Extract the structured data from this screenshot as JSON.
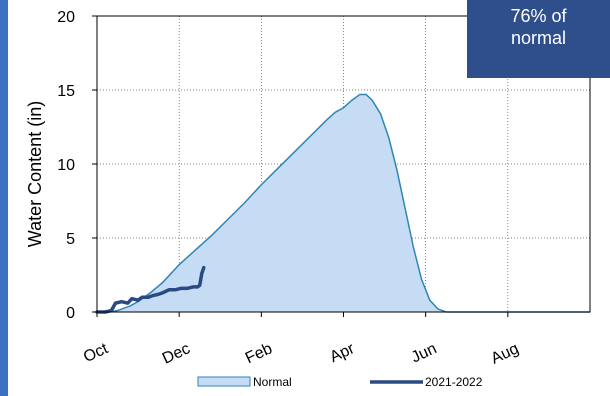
{
  "colors": {
    "accent_bar": "#3a6fc4",
    "badge_bg": "#2f4f8c",
    "normal_fill": "#c6dcf5",
    "normal_line": "#2e86b3",
    "current_line": "#2a4a82"
  },
  "badge": {
    "line1": "76% of",
    "line2": "normal"
  },
  "chart_data": {
    "type": "area",
    "ylabel": "Water Content (in)",
    "ylim": [
      0,
      20
    ],
    "yticks": [
      0,
      5,
      10,
      15,
      20
    ],
    "xlim": [
      0,
      12
    ],
    "xticks": [
      {
        "x": 0,
        "label": "Oct"
      },
      {
        "x": 2,
        "label": "Dec"
      },
      {
        "x": 4,
        "label": "Feb"
      },
      {
        "x": 6,
        "label": "Apr"
      },
      {
        "x": 8,
        "label": "Jun"
      },
      {
        "x": 10,
        "label": "Aug"
      }
    ],
    "grid": true,
    "legend": "bottom-center",
    "series": [
      {
        "name": "Normal",
        "kind": "area",
        "points": [
          [
            0,
            0
          ],
          [
            0.3,
            0
          ],
          [
            0.5,
            0.1
          ],
          [
            0.8,
            0.4
          ],
          [
            1.0,
            0.7
          ],
          [
            1.3,
            1.3
          ],
          [
            1.6,
            2.0
          ],
          [
            2.0,
            3.2
          ],
          [
            2.4,
            4.2
          ],
          [
            2.8,
            5.2
          ],
          [
            3.2,
            6.3
          ],
          [
            3.6,
            7.4
          ],
          [
            4.0,
            8.6
          ],
          [
            4.4,
            9.7
          ],
          [
            4.8,
            10.8
          ],
          [
            5.2,
            11.9
          ],
          [
            5.6,
            13.0
          ],
          [
            5.8,
            13.5
          ],
          [
            6.0,
            13.8
          ],
          [
            6.2,
            14.3
          ],
          [
            6.4,
            14.7
          ],
          [
            6.55,
            14.7
          ],
          [
            6.7,
            14.3
          ],
          [
            6.9,
            13.4
          ],
          [
            7.1,
            11.8
          ],
          [
            7.3,
            9.6
          ],
          [
            7.5,
            7.0
          ],
          [
            7.7,
            4.4
          ],
          [
            7.9,
            2.2
          ],
          [
            8.1,
            0.8
          ],
          [
            8.3,
            0.2
          ],
          [
            8.5,
            0
          ],
          [
            12,
            0
          ]
        ]
      },
      {
        "name": "2021-2022",
        "kind": "line",
        "points": [
          [
            0,
            0
          ],
          [
            0.2,
            0
          ],
          [
            0.35,
            0.1
          ],
          [
            0.45,
            0.6
          ],
          [
            0.6,
            0.7
          ],
          [
            0.75,
            0.6
          ],
          [
            0.85,
            0.9
          ],
          [
            1.0,
            0.8
          ],
          [
            1.1,
            1.0
          ],
          [
            1.25,
            1.0
          ],
          [
            1.35,
            1.1
          ],
          [
            1.5,
            1.2
          ],
          [
            1.6,
            1.3
          ],
          [
            1.75,
            1.5
          ],
          [
            1.9,
            1.5
          ],
          [
            2.05,
            1.6
          ],
          [
            2.2,
            1.6
          ],
          [
            2.35,
            1.7
          ],
          [
            2.45,
            1.7
          ],
          [
            2.5,
            1.8
          ],
          [
            2.55,
            2.6
          ],
          [
            2.6,
            3.0
          ]
        ]
      }
    ]
  }
}
